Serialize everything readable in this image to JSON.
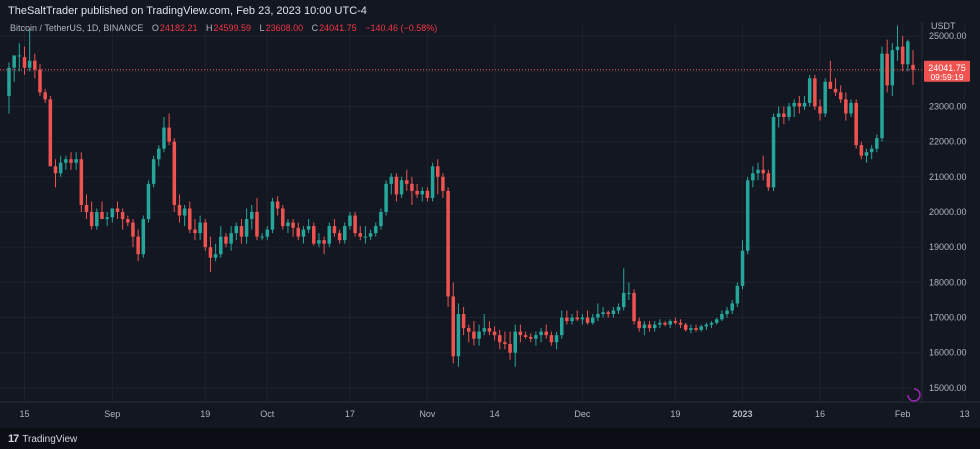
{
  "header": {
    "published": "TheSaltTrader published on TradingView.com, Feb 23, 2023 10:00 UTC-4"
  },
  "legend": {
    "symbol": "Bitcoin / TetherUS, 1D, BINANCE",
    "o_label": "O",
    "o_value": "24182.21",
    "h_label": "H",
    "h_value": "24599.59",
    "l_label": "L",
    "l_value": "23608.00",
    "c_label": "C",
    "c_value": "24041.75",
    "change": "−140.46 (−0.58%)"
  },
  "footer": {
    "logo_mark": "17",
    "brand": "TradingView"
  },
  "chart_data": {
    "type": "candlestick",
    "pair": "Bitcoin / TetherUS",
    "interval": "1D",
    "exchange": "BINANCE",
    "currency": "USDT",
    "ylim": [
      14600,
      25400
    ],
    "yticks": [
      15000,
      16000,
      17000,
      18000,
      19000,
      20000,
      21000,
      22000,
      23000,
      24000,
      25000
    ],
    "ytick_labels": [
      "15000.00",
      "16000.00",
      "17000.00",
      "18000.00",
      "19000.00",
      "20000.00",
      "21000.00",
      "22000.00",
      "23000.00",
      "24000.00",
      "25000.00"
    ],
    "xticks": [
      {
        "label": "15",
        "index": 3
      },
      {
        "label": "Sep",
        "index": 20
      },
      {
        "label": "19",
        "index": 38
      },
      {
        "label": "Oct",
        "index": 50
      },
      {
        "label": "17",
        "index": 66
      },
      {
        "label": "Nov",
        "index": 81
      },
      {
        "label": "14",
        "index": 94
      },
      {
        "label": "Dec",
        "index": 111
      },
      {
        "label": "19",
        "index": 129
      },
      {
        "label": "2023",
        "index": 142
      },
      {
        "label": "16",
        "index": 157
      },
      {
        "label": "Feb",
        "index": 173
      },
      {
        "label": "13",
        "index": 185
      }
    ],
    "last_price": 24041.75,
    "last_price_label": "24041.75",
    "countdown": "09:59:19",
    "colors": {
      "up": "#26a69a",
      "down": "#ef5350",
      "background": "#131722",
      "grid": "#1e222d",
      "text": "#b2b5be"
    },
    "ohlc": [
      [
        23300,
        24250,
        22800,
        24100
      ],
      [
        24100,
        24400,
        23700,
        24450
      ],
      [
        24450,
        24800,
        24000,
        24450
      ],
      [
        24400,
        24700,
        23900,
        24100
      ],
      [
        24100,
        25200,
        24000,
        24300
      ],
      [
        24300,
        24500,
        23800,
        24050
      ],
      [
        24050,
        24200,
        23300,
        23400
      ],
      [
        23400,
        23500,
        23100,
        23200
      ],
      [
        23200,
        23300,
        21300,
        21300
      ],
      [
        21300,
        21500,
        20700,
        21100
      ],
      [
        21100,
        21600,
        21000,
        21400
      ],
      [
        21400,
        21600,
        21200,
        21500
      ],
      [
        21500,
        21700,
        21200,
        21400
      ],
      [
        21400,
        21700,
        21200,
        21500
      ],
      [
        21500,
        21700,
        20000,
        20200
      ],
      [
        20200,
        20500,
        19800,
        20000
      ],
      [
        20000,
        20300,
        19500,
        19600
      ],
      [
        19600,
        20100,
        19500,
        20000
      ],
      [
        20000,
        20300,
        19800,
        19800
      ],
      [
        19800,
        20000,
        19600,
        19850
      ],
      [
        19850,
        20100,
        19700,
        20100
      ],
      [
        20100,
        20300,
        19800,
        20000
      ],
      [
        20000,
        20100,
        19500,
        19800
      ],
      [
        19800,
        19900,
        19600,
        19700
      ],
      [
        19700,
        19800,
        19000,
        19300
      ],
      [
        19300,
        19500,
        18600,
        18800
      ],
      [
        18800,
        19900,
        18700,
        19800
      ],
      [
        19800,
        20900,
        19700,
        20800
      ],
      [
        20800,
        21600,
        20700,
        21500
      ],
      [
        21500,
        21900,
        21300,
        21800
      ],
      [
        21800,
        22700,
        21700,
        22400
      ],
      [
        22400,
        22800,
        21900,
        22000
      ],
      [
        22000,
        22100,
        20000,
        20200
      ],
      [
        20200,
        20500,
        19700,
        19900
      ],
      [
        19900,
        20200,
        19600,
        20100
      ],
      [
        20100,
        20300,
        19400,
        19500
      ],
      [
        19500,
        19800,
        19200,
        19400
      ],
      [
        19400,
        19900,
        19200,
        19700
      ],
      [
        19700,
        19800,
        18900,
        19000
      ],
      [
        19000,
        19300,
        18300,
        18700
      ],
      [
        18700,
        19100,
        18600,
        18800
      ],
      [
        18800,
        19600,
        18700,
        19300
      ],
      [
        19300,
        19400,
        19000,
        19100
      ],
      [
        19100,
        19600,
        18900,
        19400
      ],
      [
        19400,
        19700,
        19200,
        19600
      ],
      [
        19600,
        19800,
        19100,
        19300
      ],
      [
        19300,
        20100,
        19100,
        19800
      ],
      [
        19800,
        20200,
        19500,
        20000
      ],
      [
        20000,
        20400,
        19200,
        19300
      ],
      [
        19300,
        19400,
        19200,
        19300
      ],
      [
        19300,
        19600,
        19200,
        19500
      ],
      [
        19500,
        20400,
        19400,
        20300
      ],
      [
        20300,
        20450,
        19900,
        20100
      ],
      [
        20100,
        20200,
        19500,
        19600
      ],
      [
        19600,
        19800,
        19400,
        19700
      ],
      [
        19700,
        19800,
        19300,
        19550
      ],
      [
        19550,
        19700,
        19200,
        19300
      ],
      [
        19300,
        19600,
        19100,
        19500
      ],
      [
        19500,
        19800,
        19400,
        19600
      ],
      [
        19600,
        19700,
        19050,
        19100
      ],
      [
        19100,
        19400,
        19000,
        19200
      ],
      [
        19200,
        19300,
        18800,
        19100
      ],
      [
        19100,
        19700,
        19000,
        19600
      ],
      [
        19600,
        19800,
        19300,
        19400
      ],
      [
        19400,
        19500,
        19100,
        19200
      ],
      [
        19200,
        19700,
        19100,
        19600
      ],
      [
        19600,
        20000,
        19500,
        19900
      ],
      [
        19900,
        20000,
        19300,
        19400
      ],
      [
        19400,
        19600,
        19200,
        19300
      ],
      [
        19300,
        19600,
        19100,
        19300
      ],
      [
        19300,
        19500,
        19200,
        19400
      ],
      [
        19400,
        19700,
        19300,
        19600
      ],
      [
        19600,
        20100,
        19500,
        20000
      ],
      [
        20000,
        20900,
        19900,
        20800
      ],
      [
        20800,
        21100,
        20500,
        21000
      ],
      [
        21000,
        21100,
        20300,
        20500
      ],
      [
        20500,
        21000,
        20400,
        20900
      ],
      [
        20900,
        21200,
        20600,
        20800
      ],
      [
        20800,
        21000,
        20200,
        20600
      ],
      [
        20600,
        20800,
        20400,
        20500
      ],
      [
        20500,
        20700,
        20300,
        20600
      ],
      [
        20600,
        20700,
        20300,
        20400
      ],
      [
        20400,
        21400,
        20300,
        21300
      ],
      [
        21300,
        21500,
        20500,
        21000
      ],
      [
        21000,
        21100,
        20400,
        20600
      ],
      [
        20600,
        20700,
        17300,
        17600
      ],
      [
        17600,
        18000,
        15700,
        15900
      ],
      [
        15900,
        17400,
        15600,
        17100
      ],
      [
        17100,
        17300,
        16500,
        16700
      ],
      [
        16700,
        16800,
        16300,
        16600
      ],
      [
        16600,
        16900,
        16200,
        16400
      ],
      [
        16400,
        16800,
        16200,
        16600
      ],
      [
        16600,
        17100,
        16500,
        16700
      ],
      [
        16700,
        16900,
        16500,
        16600
      ],
      [
        16600,
        16750,
        16350,
        16500
      ],
      [
        16500,
        16650,
        16100,
        16300
      ],
      [
        16300,
        16600,
        16100,
        16250
      ],
      [
        16250,
        16600,
        15800,
        16000
      ],
      [
        16000,
        16800,
        15600,
        16600
      ],
      [
        16600,
        16800,
        16300,
        16500
      ],
      [
        16500,
        16600,
        16400,
        16450
      ],
      [
        16450,
        16550,
        16300,
        16400
      ],
      [
        16400,
        16600,
        16200,
        16500
      ],
      [
        16500,
        16700,
        16300,
        16600
      ],
      [
        16600,
        16800,
        16400,
        16500
      ],
      [
        16500,
        16600,
        16200,
        16300
      ],
      [
        16300,
        16600,
        16100,
        16500
      ],
      [
        16500,
        17200,
        16400,
        17000
      ],
      [
        17000,
        17200,
        16800,
        16900
      ],
      [
        16900,
        17100,
        16800,
        17000
      ],
      [
        17000,
        17200,
        16900,
        16950
      ],
      [
        16950,
        17100,
        16800,
        17000
      ],
      [
        17000,
        17200,
        16800,
        16850
      ],
      [
        16850,
        17100,
        16800,
        17000
      ],
      [
        17000,
        17400,
        16900,
        17100
      ],
      [
        17100,
        17300,
        17000,
        17150
      ],
      [
        17150,
        17200,
        17000,
        17100
      ],
      [
        17100,
        17300,
        17000,
        17200
      ],
      [
        17200,
        17400,
        17100,
        17300
      ],
      [
        17300,
        18400,
        17200,
        17700
      ],
      [
        17700,
        18000,
        17500,
        17700
      ],
      [
        17700,
        17800,
        16800,
        16900
      ],
      [
        16900,
        17000,
        16600,
        16700
      ],
      [
        16700,
        16900,
        16500,
        16800
      ],
      [
        16800,
        16900,
        16600,
        16700
      ],
      [
        16700,
        16900,
        16600,
        16800
      ],
      [
        16800,
        16950,
        16700,
        16850
      ],
      [
        16850,
        16900,
        16750,
        16800
      ],
      [
        16800,
        16950,
        16700,
        16900
      ],
      [
        16900,
        17000,
        16800,
        16850
      ],
      [
        16850,
        16950,
        16700,
        16800
      ],
      [
        16800,
        16850,
        16600,
        16650
      ],
      [
        16650,
        16800,
        16550,
        16700
      ],
      [
        16700,
        16800,
        16600,
        16650
      ],
      [
        16650,
        16800,
        16600,
        16750
      ],
      [
        16750,
        16850,
        16650,
        16800
      ],
      [
        16800,
        16900,
        16700,
        16850
      ],
      [
        16850,
        17000,
        16800,
        16950
      ],
      [
        16950,
        17200,
        16900,
        17100
      ],
      [
        17100,
        17300,
        17000,
        17200
      ],
      [
        17200,
        17500,
        17100,
        17400
      ],
      [
        17400,
        18000,
        17300,
        17900
      ],
      [
        17900,
        19200,
        17800,
        18900
      ],
      [
        18900,
        21000,
        18800,
        20900
      ],
      [
        20900,
        21300,
        20700,
        21100
      ],
      [
        21100,
        21400,
        20900,
        21200
      ],
      [
        21200,
        21600,
        20900,
        21100
      ],
      [
        21100,
        21200,
        20600,
        20700
      ],
      [
        20700,
        22800,
        20600,
        22700
      ],
      [
        22700,
        23000,
        22400,
        22800
      ],
      [
        22800,
        23000,
        22500,
        22700
      ],
      [
        22700,
        23100,
        22600,
        23000
      ],
      [
        23000,
        23200,
        22700,
        23100
      ],
      [
        23100,
        23300,
        22800,
        23000
      ],
      [
        23000,
        23300,
        22900,
        23100
      ],
      [
        23100,
        23900,
        23000,
        23800
      ],
      [
        23800,
        23900,
        22900,
        23000
      ],
      [
        23000,
        23200,
        22600,
        22800
      ],
      [
        22800,
        23800,
        22700,
        23700
      ],
      [
        23700,
        24300,
        23500,
        23500
      ],
      [
        23500,
        23800,
        23300,
        23400
      ],
      [
        23400,
        23600,
        23100,
        23200
      ],
      [
        23200,
        23400,
        22600,
        22800
      ],
      [
        22800,
        23200,
        22700,
        23100
      ],
      [
        23100,
        23200,
        21800,
        21900
      ],
      [
        21900,
        22000,
        21500,
        21600
      ],
      [
        21600,
        21800,
        21400,
        21700
      ],
      [
        21700,
        21900,
        21500,
        21800
      ],
      [
        21800,
        22200,
        21700,
        22100
      ],
      [
        22100,
        24700,
        22000,
        24500
      ],
      [
        24500,
        24900,
        23400,
        23600
      ],
      [
        23600,
        24800,
        23300,
        24600
      ],
      [
        24600,
        25300,
        24300,
        24700
      ],
      [
        24700,
        25000,
        24000,
        24200
      ],
      [
        24200,
        24900,
        24000,
        24850
      ],
      [
        24182.21,
        24599.59,
        23608.0,
        24041.75
      ]
    ]
  }
}
